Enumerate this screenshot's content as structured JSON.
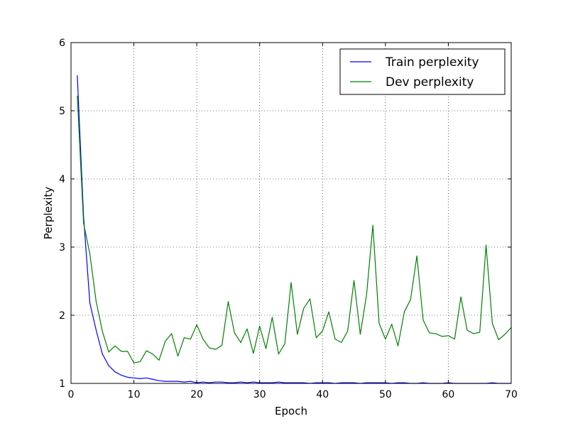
{
  "chart_data": {
    "type": "line",
    "xlabel": "Epoch",
    "ylabel": "Perplexity",
    "xlim": [
      0,
      70
    ],
    "ylim": [
      1,
      6
    ],
    "xticks": [
      "0",
      "10",
      "20",
      "30",
      "40",
      "50",
      "60",
      "70"
    ],
    "yticks": [
      "1",
      "2",
      "3",
      "4",
      "5",
      "6"
    ],
    "grid": true,
    "legend_position": "top-right",
    "x": [
      1,
      2,
      3,
      4,
      5,
      6,
      7,
      8,
      9,
      10,
      11,
      12,
      13,
      14,
      15,
      16,
      17,
      18,
      19,
      20,
      21,
      22,
      23,
      24,
      25,
      26,
      27,
      28,
      29,
      30,
      31,
      32,
      33,
      34,
      35,
      36,
      37,
      38,
      39,
      40,
      41,
      42,
      43,
      44,
      45,
      46,
      47,
      48,
      49,
      50,
      51,
      52,
      53,
      54,
      55,
      56,
      57,
      58,
      59,
      60,
      61,
      62,
      63,
      64,
      65,
      66,
      67,
      68,
      69,
      70
    ],
    "series": [
      {
        "name": "Train perplexity",
        "color": "#0000ff",
        "values": [
          5.52,
          3.45,
          2.18,
          1.78,
          1.43,
          1.26,
          1.17,
          1.12,
          1.09,
          1.08,
          1.07,
          1.08,
          1.06,
          1.04,
          1.03,
          1.03,
          1.03,
          1.02,
          1.03,
          1.01,
          1.02,
          1.01,
          1.02,
          1.02,
          1.01,
          1.01,
          1.02,
          1.01,
          1.02,
          1.01,
          1.01,
          1.01,
          1.02,
          1.01,
          1.01,
          1.01,
          1.01,
          1.0,
          1.01,
          1.01,
          1.01,
          1.0,
          1.01,
          1.01,
          1.01,
          1.0,
          1.01,
          1.01,
          1.01,
          1.01,
          1.0,
          1.01,
          1.01,
          1.0,
          1.0,
          1.01,
          1.0,
          1.0,
          1.0,
          1.01,
          1.0,
          1.0,
          1.0,
          1.0,
          1.0,
          1.0,
          1.01,
          1.0,
          1.0,
          1.0
        ]
      },
      {
        "name": "Dev perplexity",
        "color": "#008000",
        "values": [
          5.22,
          3.35,
          2.9,
          2.2,
          1.76,
          1.46,
          1.55,
          1.47,
          1.47,
          1.3,
          1.32,
          1.48,
          1.43,
          1.34,
          1.62,
          1.73,
          1.4,
          1.67,
          1.65,
          1.86,
          1.65,
          1.52,
          1.5,
          1.56,
          2.2,
          1.74,
          1.6,
          1.8,
          1.44,
          1.84,
          1.51,
          1.97,
          1.43,
          1.58,
          2.48,
          1.72,
          2.1,
          2.24,
          1.67,
          1.77,
          2.05,
          1.65,
          1.6,
          1.77,
          2.51,
          1.72,
          2.3,
          3.32,
          1.88,
          1.65,
          1.87,
          1.55,
          2.05,
          2.23,
          2.87,
          1.93,
          1.74,
          1.73,
          1.69,
          1.7,
          1.65,
          2.27,
          1.78,
          1.73,
          1.75,
          3.03,
          1.88,
          1.64,
          1.72,
          1.82
        ]
      }
    ]
  }
}
